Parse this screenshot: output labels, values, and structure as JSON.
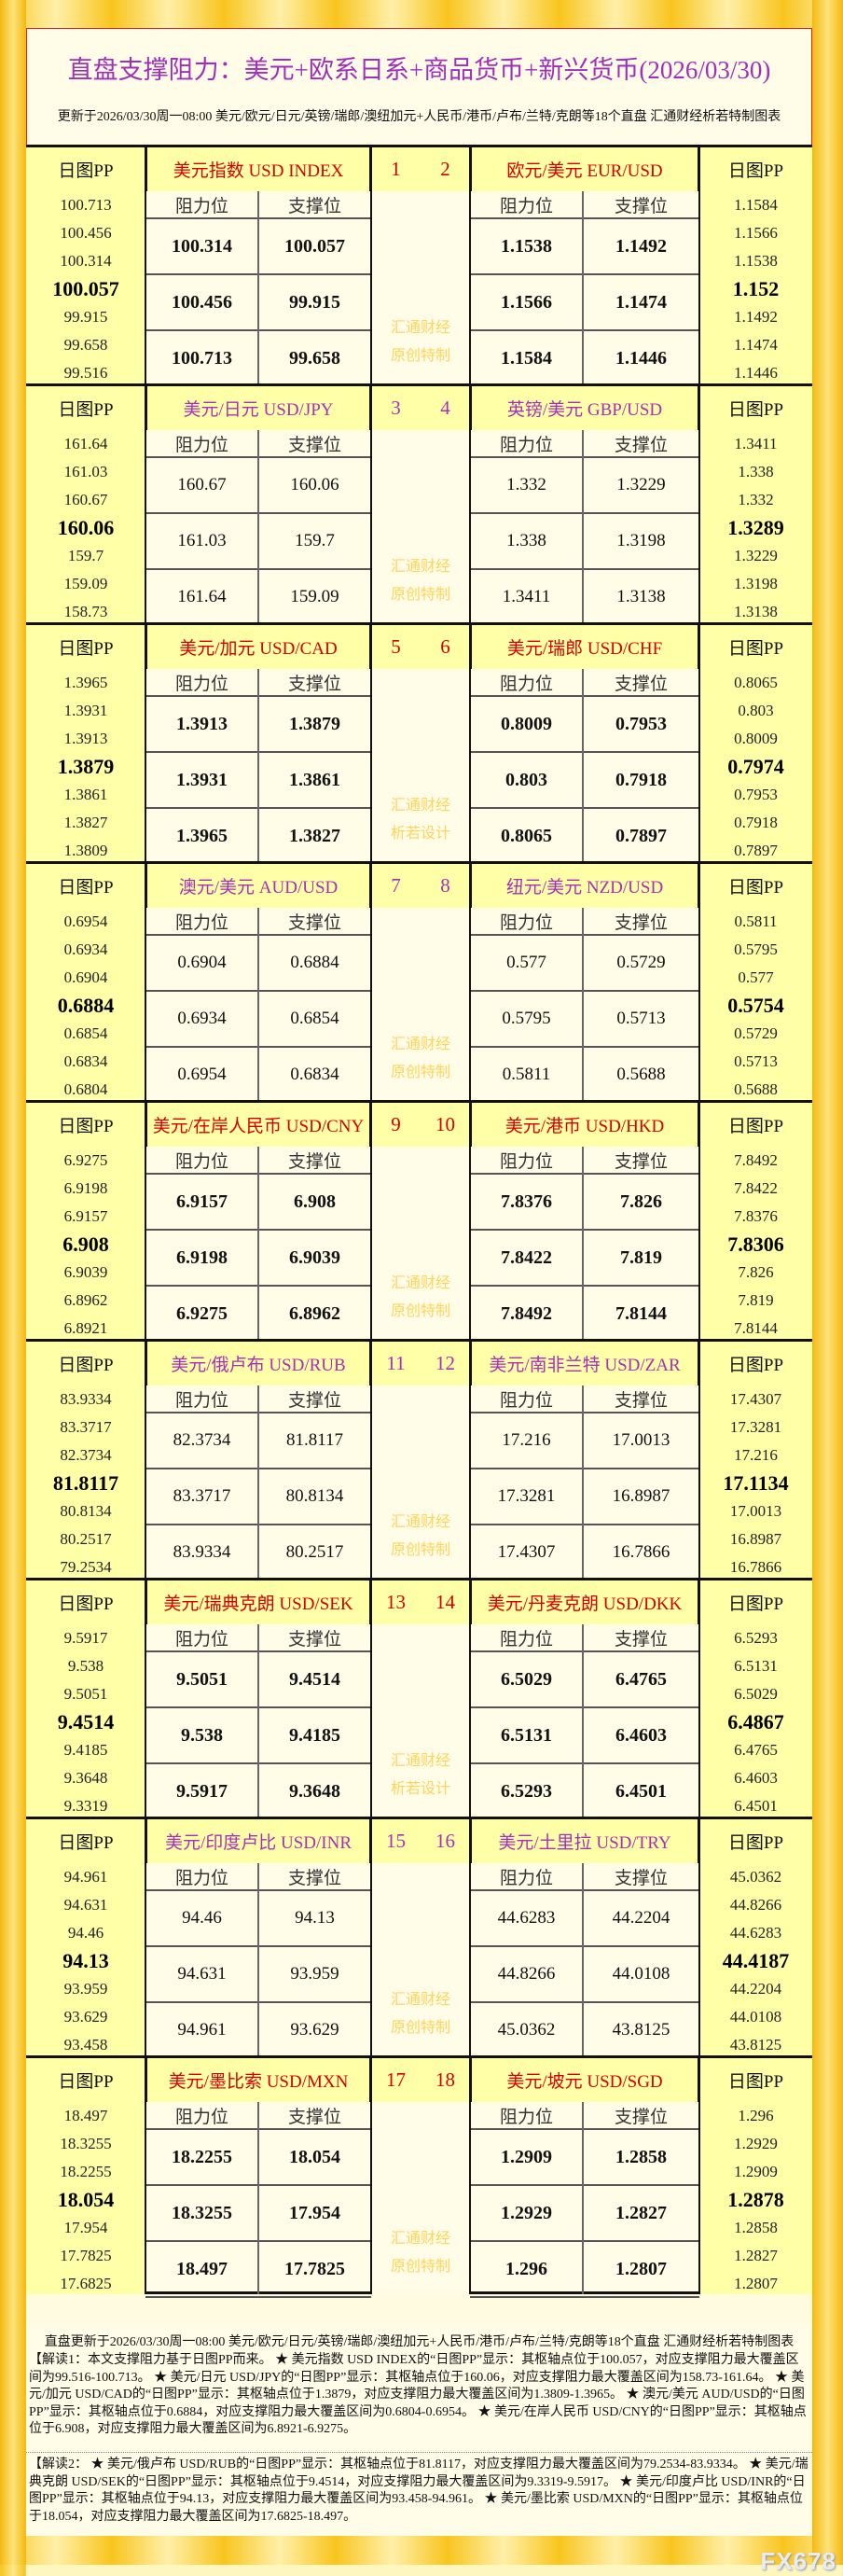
{
  "title": "直盘支撑阻力：美元+欧系日系+商品货币+新兴货币(2026/03/30)",
  "subtitle": "更新于2026/03/30周一08:00 美元/欧元/日元/英镑/瑞郎/澳纽加元+人民币/港币/卢布/兰特/克朗等18个直盘 汇通财经析若特制图表",
  "labels": {
    "pp": "日图PP",
    "resistance": "阻力位",
    "support": "支撑位",
    "wm1": "汇通财经"
  },
  "colors": {
    "red": "#d40000",
    "purple": "#a830b8",
    "watermark": "#ffd35a"
  },
  "blocks": [
    {
      "color": "red",
      "bold": true,
      "wm2": "原创特制",
      "n1": "1",
      "n2": "2",
      "left": {
        "name": "美元指数 USD INDEX",
        "pp": [
          "100.713",
          "100.456",
          "100.314",
          "100.057",
          "99.915",
          "99.658",
          "99.516"
        ],
        "res": [
          "100.314",
          "100.456",
          "100.713"
        ],
        "sup": [
          "100.057",
          "99.915",
          "99.658"
        ]
      },
      "right": {
        "name": "欧元/美元 EUR/USD",
        "pp": [
          "1.1584",
          "1.1566",
          "1.1538",
          "1.152",
          "1.1492",
          "1.1474",
          "1.1446"
        ],
        "res": [
          "1.1538",
          "1.1566",
          "1.1584"
        ],
        "sup": [
          "1.1492",
          "1.1474",
          "1.1446"
        ]
      }
    },
    {
      "color": "purple",
      "bold": false,
      "wm2": "原创特制",
      "n1": "3",
      "n2": "4",
      "left": {
        "name": "美元/日元 USD/JPY",
        "pp": [
          "161.64",
          "161.03",
          "160.67",
          "160.06",
          "159.7",
          "159.09",
          "158.73"
        ],
        "res": [
          "160.67",
          "161.03",
          "161.64"
        ],
        "sup": [
          "160.06",
          "159.7",
          "159.09"
        ]
      },
      "right": {
        "name": "英镑/美元 GBP/USD",
        "pp": [
          "1.3411",
          "1.338",
          "1.332",
          "1.3289",
          "1.3229",
          "1.3198",
          "1.3138"
        ],
        "res": [
          "1.332",
          "1.338",
          "1.3411"
        ],
        "sup": [
          "1.3229",
          "1.3198",
          "1.3138"
        ]
      }
    },
    {
      "color": "red",
      "bold": true,
      "wm2": "析若设计",
      "n1": "5",
      "n2": "6",
      "left": {
        "name": "美元/加元 USD/CAD",
        "pp": [
          "1.3965",
          "1.3931",
          "1.3913",
          "1.3879",
          "1.3861",
          "1.3827",
          "1.3809"
        ],
        "res": [
          "1.3913",
          "1.3931",
          "1.3965"
        ],
        "sup": [
          "1.3879",
          "1.3861",
          "1.3827"
        ]
      },
      "right": {
        "name": "美元/瑞郎 USD/CHF",
        "pp": [
          "0.8065",
          "0.803",
          "0.8009",
          "0.7974",
          "0.7953",
          "0.7918",
          "0.7897"
        ],
        "res": [
          "0.8009",
          "0.803",
          "0.8065"
        ],
        "sup": [
          "0.7953",
          "0.7918",
          "0.7897"
        ]
      }
    },
    {
      "color": "purple",
      "bold": false,
      "wm2": "原创特制",
      "n1": "7",
      "n2": "8",
      "left": {
        "name": "澳元/美元 AUD/USD",
        "pp": [
          "0.6954",
          "0.6934",
          "0.6904",
          "0.6884",
          "0.6854",
          "0.6834",
          "0.6804"
        ],
        "res": [
          "0.6904",
          "0.6934",
          "0.6954"
        ],
        "sup": [
          "0.6884",
          "0.6854",
          "0.6834"
        ]
      },
      "right": {
        "name": "纽元/美元 NZD/USD",
        "pp": [
          "0.5811",
          "0.5795",
          "0.577",
          "0.5754",
          "0.5729",
          "0.5713",
          "0.5688"
        ],
        "res": [
          "0.577",
          "0.5795",
          "0.5811"
        ],
        "sup": [
          "0.5729",
          "0.5713",
          "0.5688"
        ]
      }
    },
    {
      "color": "red",
      "bold": true,
      "wm2": "原创特制",
      "n1": "9",
      "n2": "10",
      "left": {
        "name": "美元/在岸人民币 USD/CNY",
        "pp": [
          "6.9275",
          "6.9198",
          "6.9157",
          "6.908",
          "6.9039",
          "6.8962",
          "6.8921"
        ],
        "res": [
          "6.9157",
          "6.9198",
          "6.9275"
        ],
        "sup": [
          "6.908",
          "6.9039",
          "6.8962"
        ]
      },
      "right": {
        "name": "美元/港币 USD/HKD",
        "pp": [
          "7.8492",
          "7.8422",
          "7.8376",
          "7.8306",
          "7.826",
          "7.819",
          "7.8144"
        ],
        "res": [
          "7.8376",
          "7.8422",
          "7.8492"
        ],
        "sup": [
          "7.826",
          "7.819",
          "7.8144"
        ]
      }
    },
    {
      "color": "purple",
      "bold": false,
      "wm2": "原创特制",
      "n1": "11",
      "n2": "12",
      "left": {
        "name": "美元/俄卢布 USD/RUB",
        "pp": [
          "83.9334",
          "83.3717",
          "82.3734",
          "81.8117",
          "80.8134",
          "80.2517",
          "79.2534"
        ],
        "res": [
          "82.3734",
          "83.3717",
          "83.9334"
        ],
        "sup": [
          "81.8117",
          "80.8134",
          "80.2517"
        ]
      },
      "right": {
        "name": "美元/南非兰特 USD/ZAR",
        "pp": [
          "17.4307",
          "17.3281",
          "17.216",
          "17.1134",
          "17.0013",
          "16.8987",
          "16.7866"
        ],
        "res": [
          "17.216",
          "17.3281",
          "17.4307"
        ],
        "sup": [
          "17.0013",
          "16.8987",
          "16.7866"
        ]
      }
    },
    {
      "color": "red",
      "bold": true,
      "wm2": "析若设计",
      "n1": "13",
      "n2": "14",
      "left": {
        "name": "美元/瑞典克朗 USD/SEK",
        "pp": [
          "9.5917",
          "9.538",
          "9.5051",
          "9.4514",
          "9.4185",
          "9.3648",
          "9.3319"
        ],
        "res": [
          "9.5051",
          "9.538",
          "9.5917"
        ],
        "sup": [
          "9.4514",
          "9.4185",
          "9.3648"
        ]
      },
      "right": {
        "name": "美元/丹麦克朗 USD/DKK",
        "pp": [
          "6.5293",
          "6.5131",
          "6.5029",
          "6.4867",
          "6.4765",
          "6.4603",
          "6.4501"
        ],
        "res": [
          "6.5029",
          "6.5131",
          "6.5293"
        ],
        "sup": [
          "6.4765",
          "6.4603",
          "6.4501"
        ]
      }
    },
    {
      "color": "purple",
      "bold": false,
      "wm2": "原创特制",
      "n1": "15",
      "n2": "16",
      "left": {
        "name": "美元/印度卢比 USD/INR",
        "pp": [
          "94.961",
          "94.631",
          "94.46",
          "94.13",
          "93.959",
          "93.629",
          "93.458"
        ],
        "res": [
          "94.46",
          "94.631",
          "94.961"
        ],
        "sup": [
          "94.13",
          "93.959",
          "93.629"
        ]
      },
      "right": {
        "name": "美元/土里拉 USD/TRY",
        "pp": [
          "45.0362",
          "44.8266",
          "44.6283",
          "44.4187",
          "44.2204",
          "44.0108",
          "43.8125"
        ],
        "res": [
          "44.6283",
          "44.8266",
          "45.0362"
        ],
        "sup": [
          "44.2204",
          "44.0108",
          "43.8125"
        ]
      }
    },
    {
      "color": "red",
      "bold": true,
      "wm2": "原创特制",
      "n1": "17",
      "n2": "18",
      "left": {
        "name": "美元/墨比索 USD/MXN",
        "pp": [
          "18.497",
          "18.3255",
          "18.2255",
          "18.054",
          "17.954",
          "17.7825",
          "17.6825"
        ],
        "res": [
          "18.2255",
          "18.3255",
          "18.497"
        ],
        "sup": [
          "18.054",
          "17.954",
          "17.7825"
        ]
      },
      "right": {
        "name": "美元/坡元 USD/SGD",
        "pp": [
          "1.296",
          "1.2929",
          "1.2909",
          "1.2878",
          "1.2858",
          "1.2827",
          "1.2807"
        ],
        "res": [
          "1.2909",
          "1.2929",
          "1.296"
        ],
        "sup": [
          "1.2858",
          "1.2827",
          "1.2807"
        ]
      }
    }
  ],
  "footer_note": "直盘更新于2026/03/30周一08:00 美元/欧元/日元/英镑/瑞郎/澳纽加元+人民币/港币/卢布/兰特/克朗等18个直盘 汇通财经析若特制图表",
  "explanation1": "【解读1：本文支撑阻力基于日图PP而来。 ★ 美元指数 USD INDEX的“日图PP”显示：其枢轴点位于100.057，对应支撑阻力最大覆盖区间为99.516-100.713。 ★ 美元/日元 USD/JPY的“日图PP”显示：其枢轴点位于160.06，对应支撑阻力最大覆盖区间为158.73-161.64。 ★ 美元/加元 USD/CAD的“日图PP”显示：其枢轴点位于1.3879，对应支撑阻力最大覆盖区间为1.3809-1.3965。 ★ 澳元/美元 AUD/USD的“日图PP”显示：其枢轴点位于0.6884，对应支撑阻力最大覆盖区间为0.6804-0.6954。 ★ 美元/在岸人民币 USD/CNY的“日图PP”显示：其枢轴点位于6.908，对应支撑阻力最大覆盖区间为6.8921-6.9275。",
  "explanation2": "【解读2： ★ 美元/俄卢布 USD/RUB的“日图PP”显示：其枢轴点位于81.8117，对应支撑阻力最大覆盖区间为79.2534-83.9334。 ★ 美元/瑞典克朗 USD/SEK的“日图PP”显示：其枢轴点位于9.4514，对应支撑阻力最大覆盖区间为9.3319-9.5917。 ★ 美元/印度卢比 USD/INR的“日图PP”显示：其枢轴点位于94.13，对应支撑阻力最大覆盖区间为93.458-94.961。 ★ 美元/墨比索 USD/MXN的“日图PP”显示：其枢轴点位于18.054，对应支撑阻力最大覆盖区间为17.6825-18.497。",
  "watermark_logo": "FX678"
}
